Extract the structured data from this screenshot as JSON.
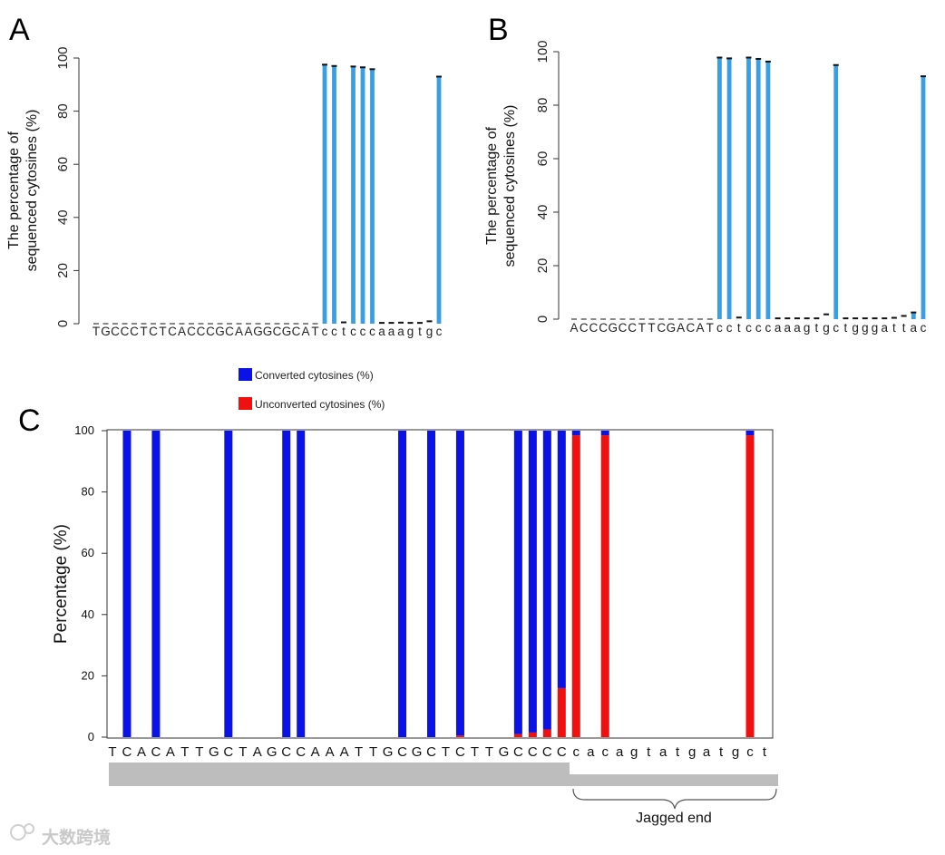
{
  "watermark": "大数跨境",
  "chart_data": [
    {
      "panel": "A",
      "type": "bar",
      "ylabel_line1": "The percentage of",
      "ylabel_line2": "sequenced cytosines (%)",
      "ylim": [
        0,
        100
      ],
      "yticks": [
        "0",
        "20",
        "40",
        "60",
        "80",
        "100"
      ],
      "bar_color": "#3a9ee4",
      "categories": [
        "T",
        "G",
        "C",
        "C",
        "C",
        "T",
        "C",
        "T",
        "C",
        "A",
        "C",
        "C",
        "C",
        "G",
        "C",
        "A",
        "A",
        "G",
        "G",
        "C",
        "G",
        "C",
        "A",
        "T",
        "c",
        "c",
        "t",
        "c",
        "c",
        "c",
        "a",
        "a",
        "a",
        "g",
        "t",
        "g",
        "c"
      ],
      "values": [
        0,
        0,
        0,
        0,
        0,
        0,
        0,
        0,
        0,
        0,
        0,
        0,
        0,
        0,
        0,
        0,
        0,
        0,
        0,
        0,
        0,
        0,
        0,
        0,
        97.5,
        97,
        0.5,
        96.8,
        96.5,
        95.8,
        0.3,
        0.3,
        0.4,
        0.3,
        0.3,
        0.9,
        93
      ]
    },
    {
      "panel": "B",
      "type": "bar",
      "ylabel_line1": "The percentage of",
      "ylabel_line2": "sequenced cytosines (%)",
      "ylim": [
        0,
        100
      ],
      "yticks": [
        "0",
        "20",
        "40",
        "60",
        "80",
        "100"
      ],
      "bar_color": "#3a9ee4",
      "categories": [
        "A",
        "C",
        "C",
        "C",
        "G",
        "C",
        "C",
        "T",
        "T",
        "C",
        "G",
        "A",
        "C",
        "A",
        "T",
        "c",
        "c",
        "t",
        "c",
        "c",
        "c",
        "a",
        "a",
        "a",
        "g",
        "t",
        "g",
        "c",
        "t",
        "g",
        "g",
        "g",
        "a",
        "t",
        "t",
        "a",
        "c"
      ],
      "values": [
        0,
        0,
        0,
        0,
        0,
        0,
        0,
        0,
        0,
        0,
        0,
        0,
        0,
        0,
        0,
        97.8,
        97.5,
        0.6,
        97.8,
        97.3,
        96.3,
        0.3,
        0.3,
        0.3,
        0.3,
        0.3,
        1.8,
        95,
        0.3,
        0.3,
        0.3,
        0.3,
        0.3,
        0.5,
        1.2,
        2.5,
        90.8
      ]
    },
    {
      "panel": "C",
      "type": "bar",
      "stacked": true,
      "ylabel": "Percentage (%)",
      "ylim": [
        0,
        100
      ],
      "yticks": [
        "0",
        "20",
        "40",
        "60",
        "80",
        "100"
      ],
      "legend": [
        {
          "label": "Converted cytosines (%)",
          "color": "#0a12e6"
        },
        {
          "label": "Unconverted cytosines (%)",
          "color": "#f01010"
        }
      ],
      "categories": [
        "T",
        "C",
        "A",
        "C",
        "A",
        "T",
        "T",
        "G",
        "C",
        "T",
        "A",
        "G",
        "C",
        "C",
        "A",
        "A",
        "A",
        "T",
        "T",
        "G",
        "C",
        "G",
        "C",
        "T",
        "C",
        "T",
        "T",
        "G",
        "C",
        "C",
        "C",
        "C",
        "c",
        "a",
        "c",
        "a",
        "g",
        "t",
        "a",
        "t",
        "g",
        "a",
        "t",
        "g",
        "c",
        "t"
      ],
      "series": [
        {
          "name": "Converted cytosines (%)",
          "values": [
            0,
            100,
            0,
            100,
            0,
            0,
            0,
            0,
            100,
            0,
            0,
            0,
            100,
            100,
            0,
            0,
            0,
            0,
            0,
            0,
            100,
            0,
            100,
            0,
            99.5,
            0,
            0,
            0,
            99,
            98.5,
            97.5,
            84,
            1.5,
            0,
            1.5,
            0,
            0,
            0,
            0,
            0,
            0,
            0,
            0,
            0,
            1.5,
            0
          ]
        },
        {
          "name": "Unconverted cytosines (%)",
          "values": [
            0,
            0,
            0,
            0,
            0,
            0,
            0,
            0,
            0,
            0,
            0,
            0,
            0,
            0,
            0,
            0,
            0,
            0,
            0,
            0,
            0,
            0,
            0,
            0,
            0.5,
            0,
            0,
            0,
            1,
            1.5,
            2.5,
            16,
            98.5,
            0,
            98.5,
            0,
            0,
            0,
            0,
            0,
            0,
            0,
            0,
            0,
            98.5,
            0
          ]
        }
      ],
      "annotation": "Jagged end"
    }
  ]
}
